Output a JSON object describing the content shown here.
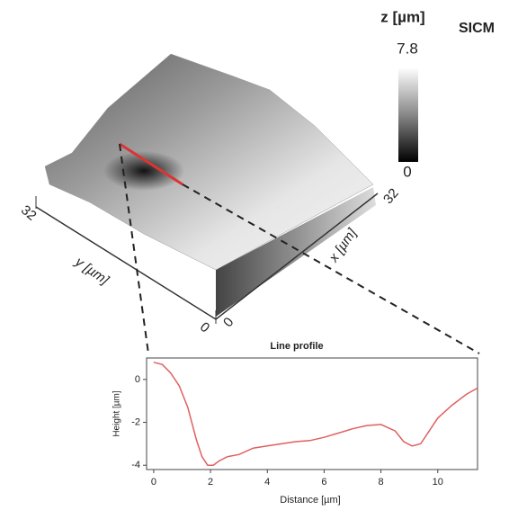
{
  "surface": {
    "label": "SICM",
    "colorbar_title": "z [µm]",
    "colorbar_ticks": [
      0,
      7.8
    ],
    "colorbar_lim": [
      0,
      7.8
    ],
    "x_label": "x [µm]",
    "y_label": "y [µm]",
    "x_ticks": [
      0,
      32
    ],
    "y_ticks": [
      0,
      32
    ]
  },
  "chart_data": {
    "type": "line",
    "title": "Line profile",
    "xlabel": "Distance [µm]",
    "ylabel": "Height [µm]",
    "color": "#e06060",
    "x": [
      0,
      0.3,
      0.6,
      0.9,
      1.2,
      1.5,
      1.7,
      1.9,
      2.1,
      2.3,
      2.6,
      3.0,
      3.5,
      4.0,
      4.5,
      5.0,
      5.5,
      6.0,
      6.5,
      7.0,
      7.5,
      8.0,
      8.5,
      8.8,
      9.1,
      9.4,
      9.7,
      10.0,
      10.5,
      11.0,
      11.4
    ],
    "values": [
      0.8,
      0.7,
      0.3,
      -0.3,
      -1.3,
      -2.8,
      -3.6,
      -4.0,
      -4.0,
      -3.8,
      -3.6,
      -3.5,
      -3.2,
      -3.1,
      -3.0,
      -2.9,
      -2.85,
      -2.7,
      -2.5,
      -2.3,
      -2.15,
      -2.1,
      -2.4,
      -2.9,
      -3.1,
      -3.0,
      -2.4,
      -1.8,
      -1.2,
      -0.7,
      -0.4
    ],
    "xlim": [
      -0.25,
      11.4
    ],
    "ylim": [
      -4.2,
      1.0
    ],
    "xticks": [
      0,
      2,
      4,
      6,
      8,
      10
    ],
    "yticks": [
      -4,
      -2,
      0
    ]
  }
}
